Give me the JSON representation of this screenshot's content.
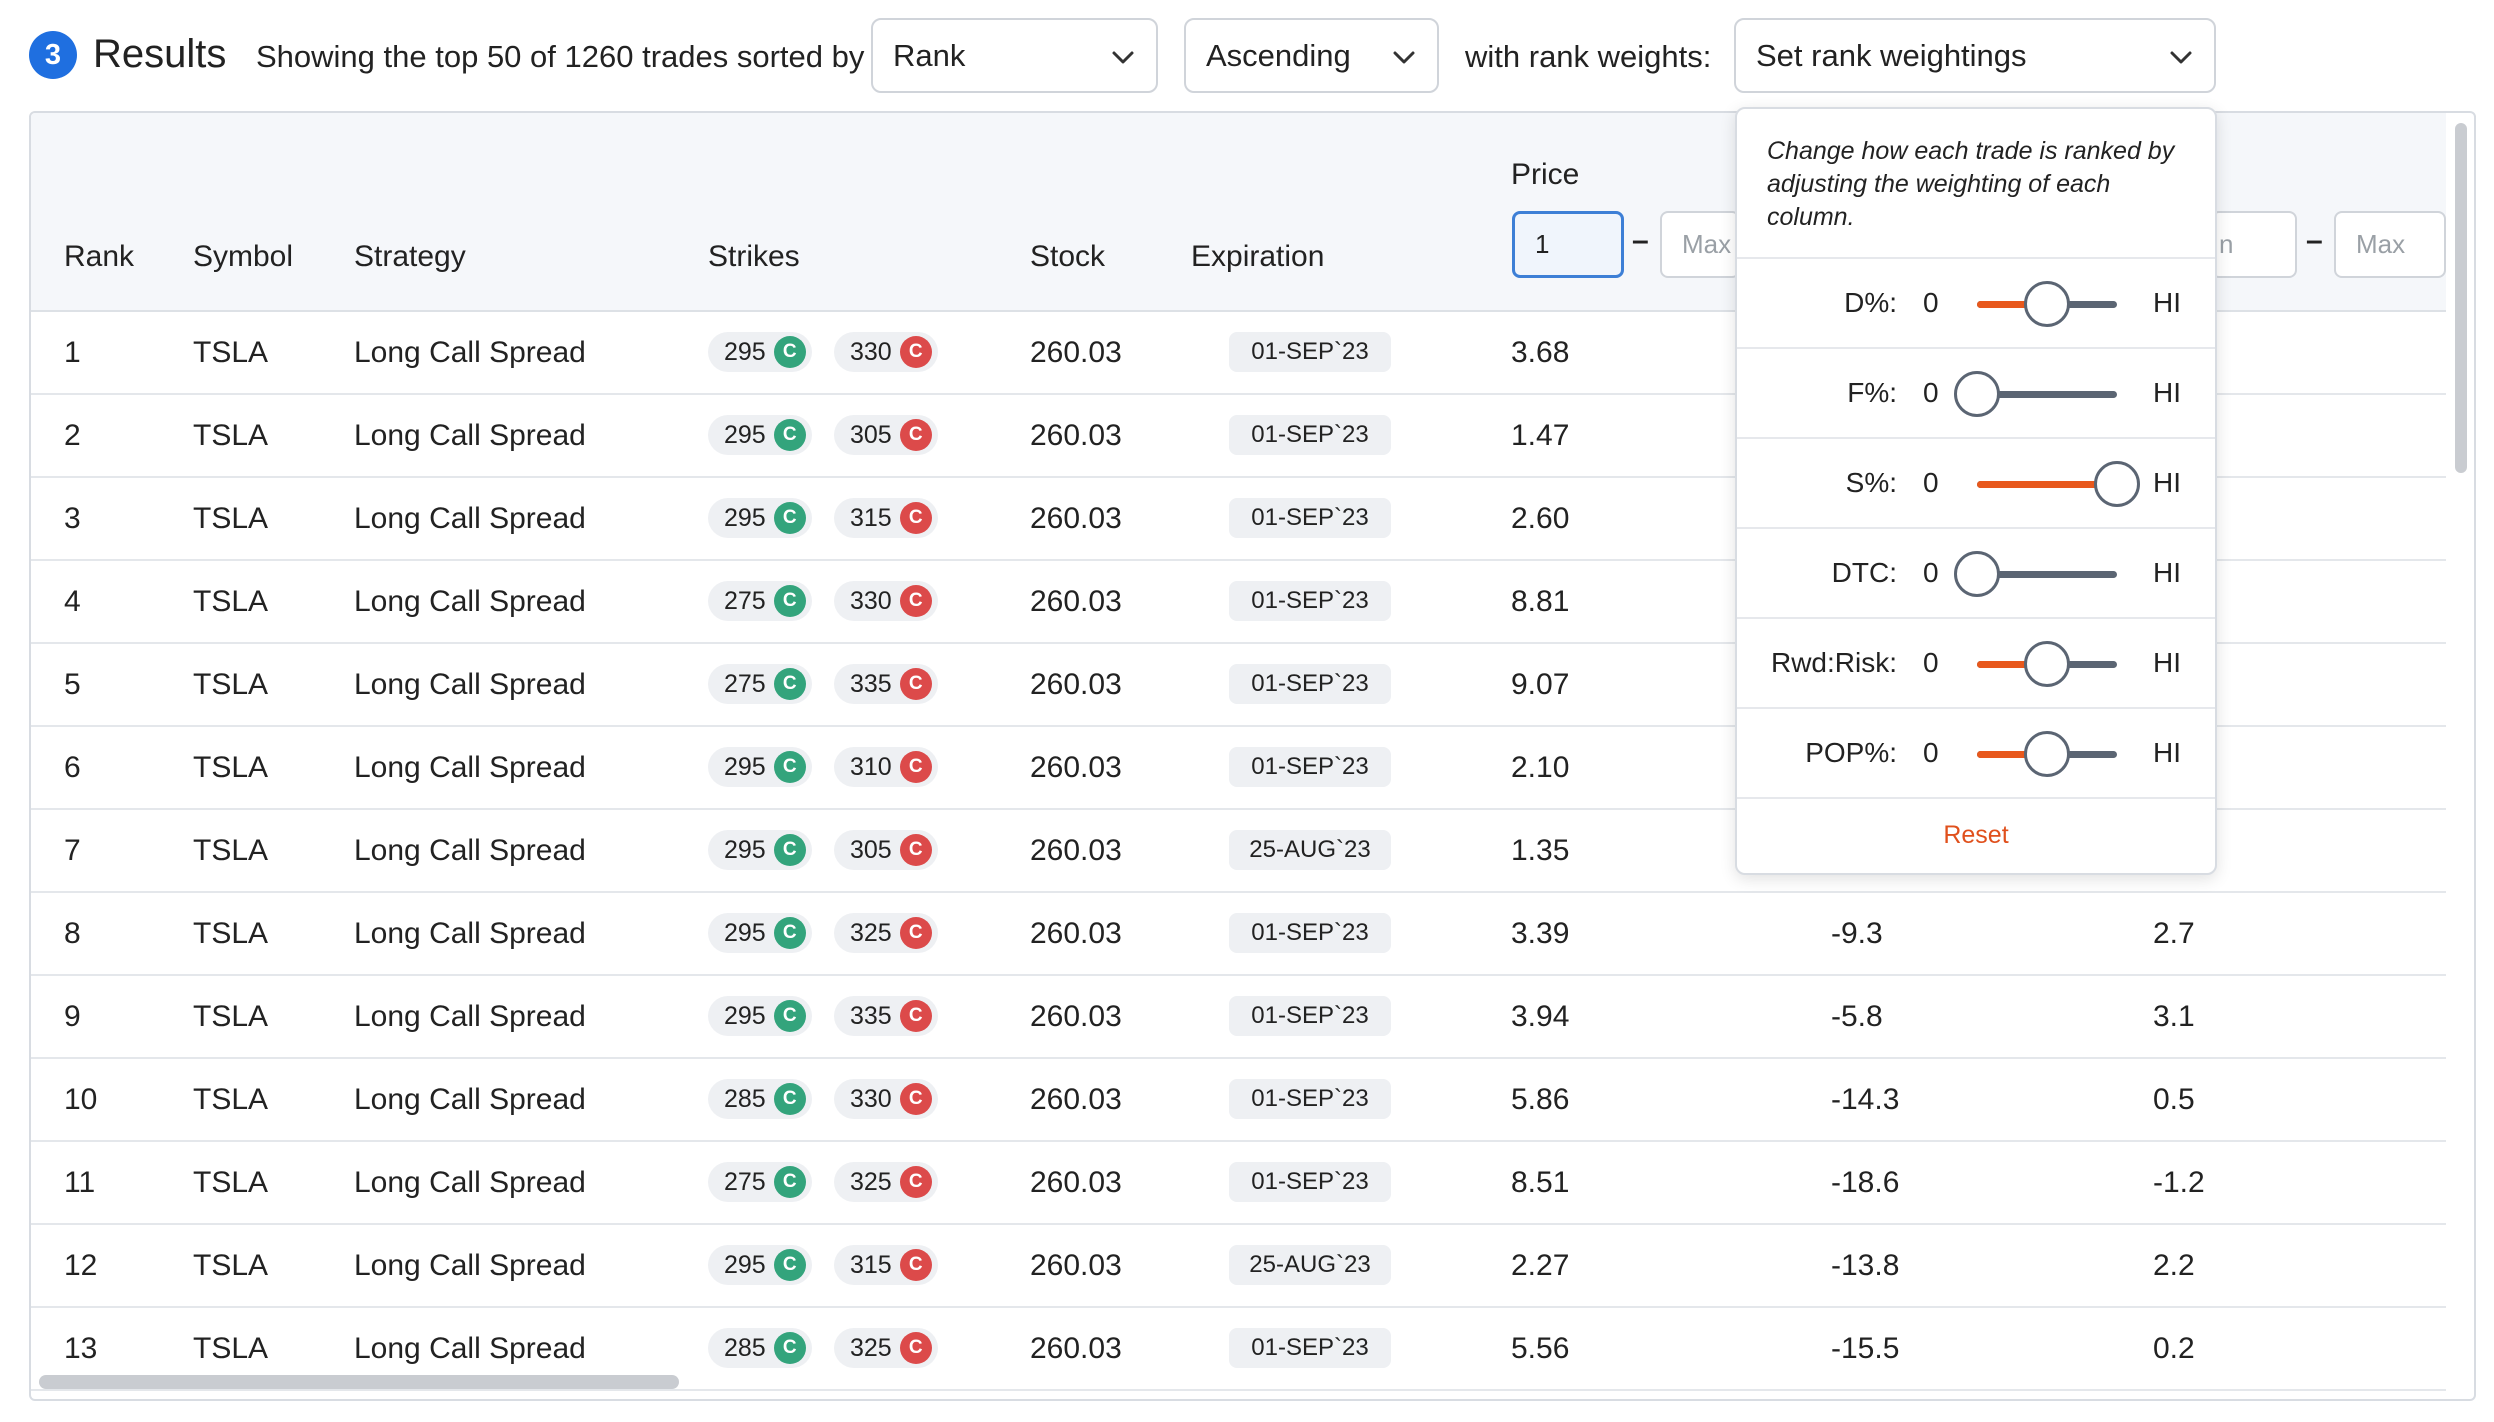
{
  "header": {
    "step_number": "3",
    "title": "Results",
    "showing_text": "Showing the top 50 of 1260 trades sorted by",
    "sort_select": "Rank",
    "order_select": "Ascending",
    "weights_text": "with rank weights:",
    "weights_select": "Set rank weightings"
  },
  "table": {
    "columns": {
      "rank": "Rank",
      "symbol": "Symbol",
      "strategy": "Strategy",
      "strikes": "Strikes",
      "stock": "Stock",
      "expiration": "Expiration",
      "price": "Price"
    },
    "price_filter": {
      "min_value": "1",
      "max_placeholder": "Max"
    },
    "second_filter": {
      "min_partial": "n",
      "max_placeholder": "Max"
    },
    "filter_dash": "–",
    "call_badge": "C",
    "rows": [
      {
        "rank": "1",
        "symbol": "TSLA",
        "strategy": "Long Call Spread",
        "strike1": "295",
        "strike2": "330",
        "stock": "260.03",
        "expiration": "01-SEP`23",
        "price": "3.68",
        "col7": "",
        "col8": ""
      },
      {
        "rank": "2",
        "symbol": "TSLA",
        "strategy": "Long Call Spread",
        "strike1": "295",
        "strike2": "305",
        "stock": "260.03",
        "expiration": "01-SEP`23",
        "price": "1.47",
        "col7": "",
        "col8": ""
      },
      {
        "rank": "3",
        "symbol": "TSLA",
        "strategy": "Long Call Spread",
        "strike1": "295",
        "strike2": "315",
        "stock": "260.03",
        "expiration": "01-SEP`23",
        "price": "2.60",
        "col7": "",
        "col8": ""
      },
      {
        "rank": "4",
        "symbol": "TSLA",
        "strategy": "Long Call Spread",
        "strike1": "275",
        "strike2": "330",
        "stock": "260.03",
        "expiration": "01-SEP`23",
        "price": "8.81",
        "col7": "",
        "col8": ""
      },
      {
        "rank": "5",
        "symbol": "TSLA",
        "strategy": "Long Call Spread",
        "strike1": "275",
        "strike2": "335",
        "stock": "260.03",
        "expiration": "01-SEP`23",
        "price": "9.07",
        "col7": "",
        "col8": ""
      },
      {
        "rank": "6",
        "symbol": "TSLA",
        "strategy": "Long Call Spread",
        "strike1": "295",
        "strike2": "310",
        "stock": "260.03",
        "expiration": "01-SEP`23",
        "price": "2.10",
        "col7": "",
        "col8": ""
      },
      {
        "rank": "7",
        "symbol": "TSLA",
        "strategy": "Long Call Spread",
        "strike1": "295",
        "strike2": "305",
        "stock": "260.03",
        "expiration": "25-AUG`23",
        "price": "1.35",
        "col7": "",
        "col8": ""
      },
      {
        "rank": "8",
        "symbol": "TSLA",
        "strategy": "Long Call Spread",
        "strike1": "295",
        "strike2": "325",
        "stock": "260.03",
        "expiration": "01-SEP`23",
        "price": "3.39",
        "col7": "-9.3",
        "col8": "2.7"
      },
      {
        "rank": "9",
        "symbol": "TSLA",
        "strategy": "Long Call Spread",
        "strike1": "295",
        "strike2": "335",
        "stock": "260.03",
        "expiration": "01-SEP`23",
        "price": "3.94",
        "col7": "-5.8",
        "col8": "3.1"
      },
      {
        "rank": "10",
        "symbol": "TSLA",
        "strategy": "Long Call Spread",
        "strike1": "285",
        "strike2": "330",
        "stock": "260.03",
        "expiration": "01-SEP`23",
        "price": "5.86",
        "col7": "-14.3",
        "col8": "0.5"
      },
      {
        "rank": "11",
        "symbol": "TSLA",
        "strategy": "Long Call Spread",
        "strike1": "275",
        "strike2": "325",
        "stock": "260.03",
        "expiration": "01-SEP`23",
        "price": "8.51",
        "col7": "-18.6",
        "col8": "-1.2"
      },
      {
        "rank": "12",
        "symbol": "TSLA",
        "strategy": "Long Call Spread",
        "strike1": "295",
        "strike2": "315",
        "stock": "260.03",
        "expiration": "25-AUG`23",
        "price": "2.27",
        "col7": "-13.8",
        "col8": "2.2"
      },
      {
        "rank": "13",
        "symbol": "TSLA",
        "strategy": "Long Call Spread",
        "strike1": "285",
        "strike2": "325",
        "stock": "260.03",
        "expiration": "01-SEP`23",
        "price": "5.56",
        "col7": "-15.5",
        "col8": "0.2"
      }
    ]
  },
  "weightings": {
    "description": "Change how each trade is ranked by adjusting the weighting of each column.",
    "min_label": "0",
    "max_label": "HI",
    "reset_label": "Reset",
    "items": [
      {
        "label": "D%:",
        "value": 0.5
      },
      {
        "label": "F%:",
        "value": 0.0
      },
      {
        "label": "S%:",
        "value": 1.0
      },
      {
        "label": "DTC:",
        "value": 0.0
      },
      {
        "label": "Rwd:Risk:",
        "value": 0.5
      },
      {
        "label": "POP%:",
        "value": 0.5
      }
    ]
  },
  "colors": {
    "accent": "#1f6fe0",
    "slider_fill": "#e8581c",
    "call_green": "#33a47c",
    "call_red": "#dc4a4a",
    "reset": "#e0501c"
  }
}
